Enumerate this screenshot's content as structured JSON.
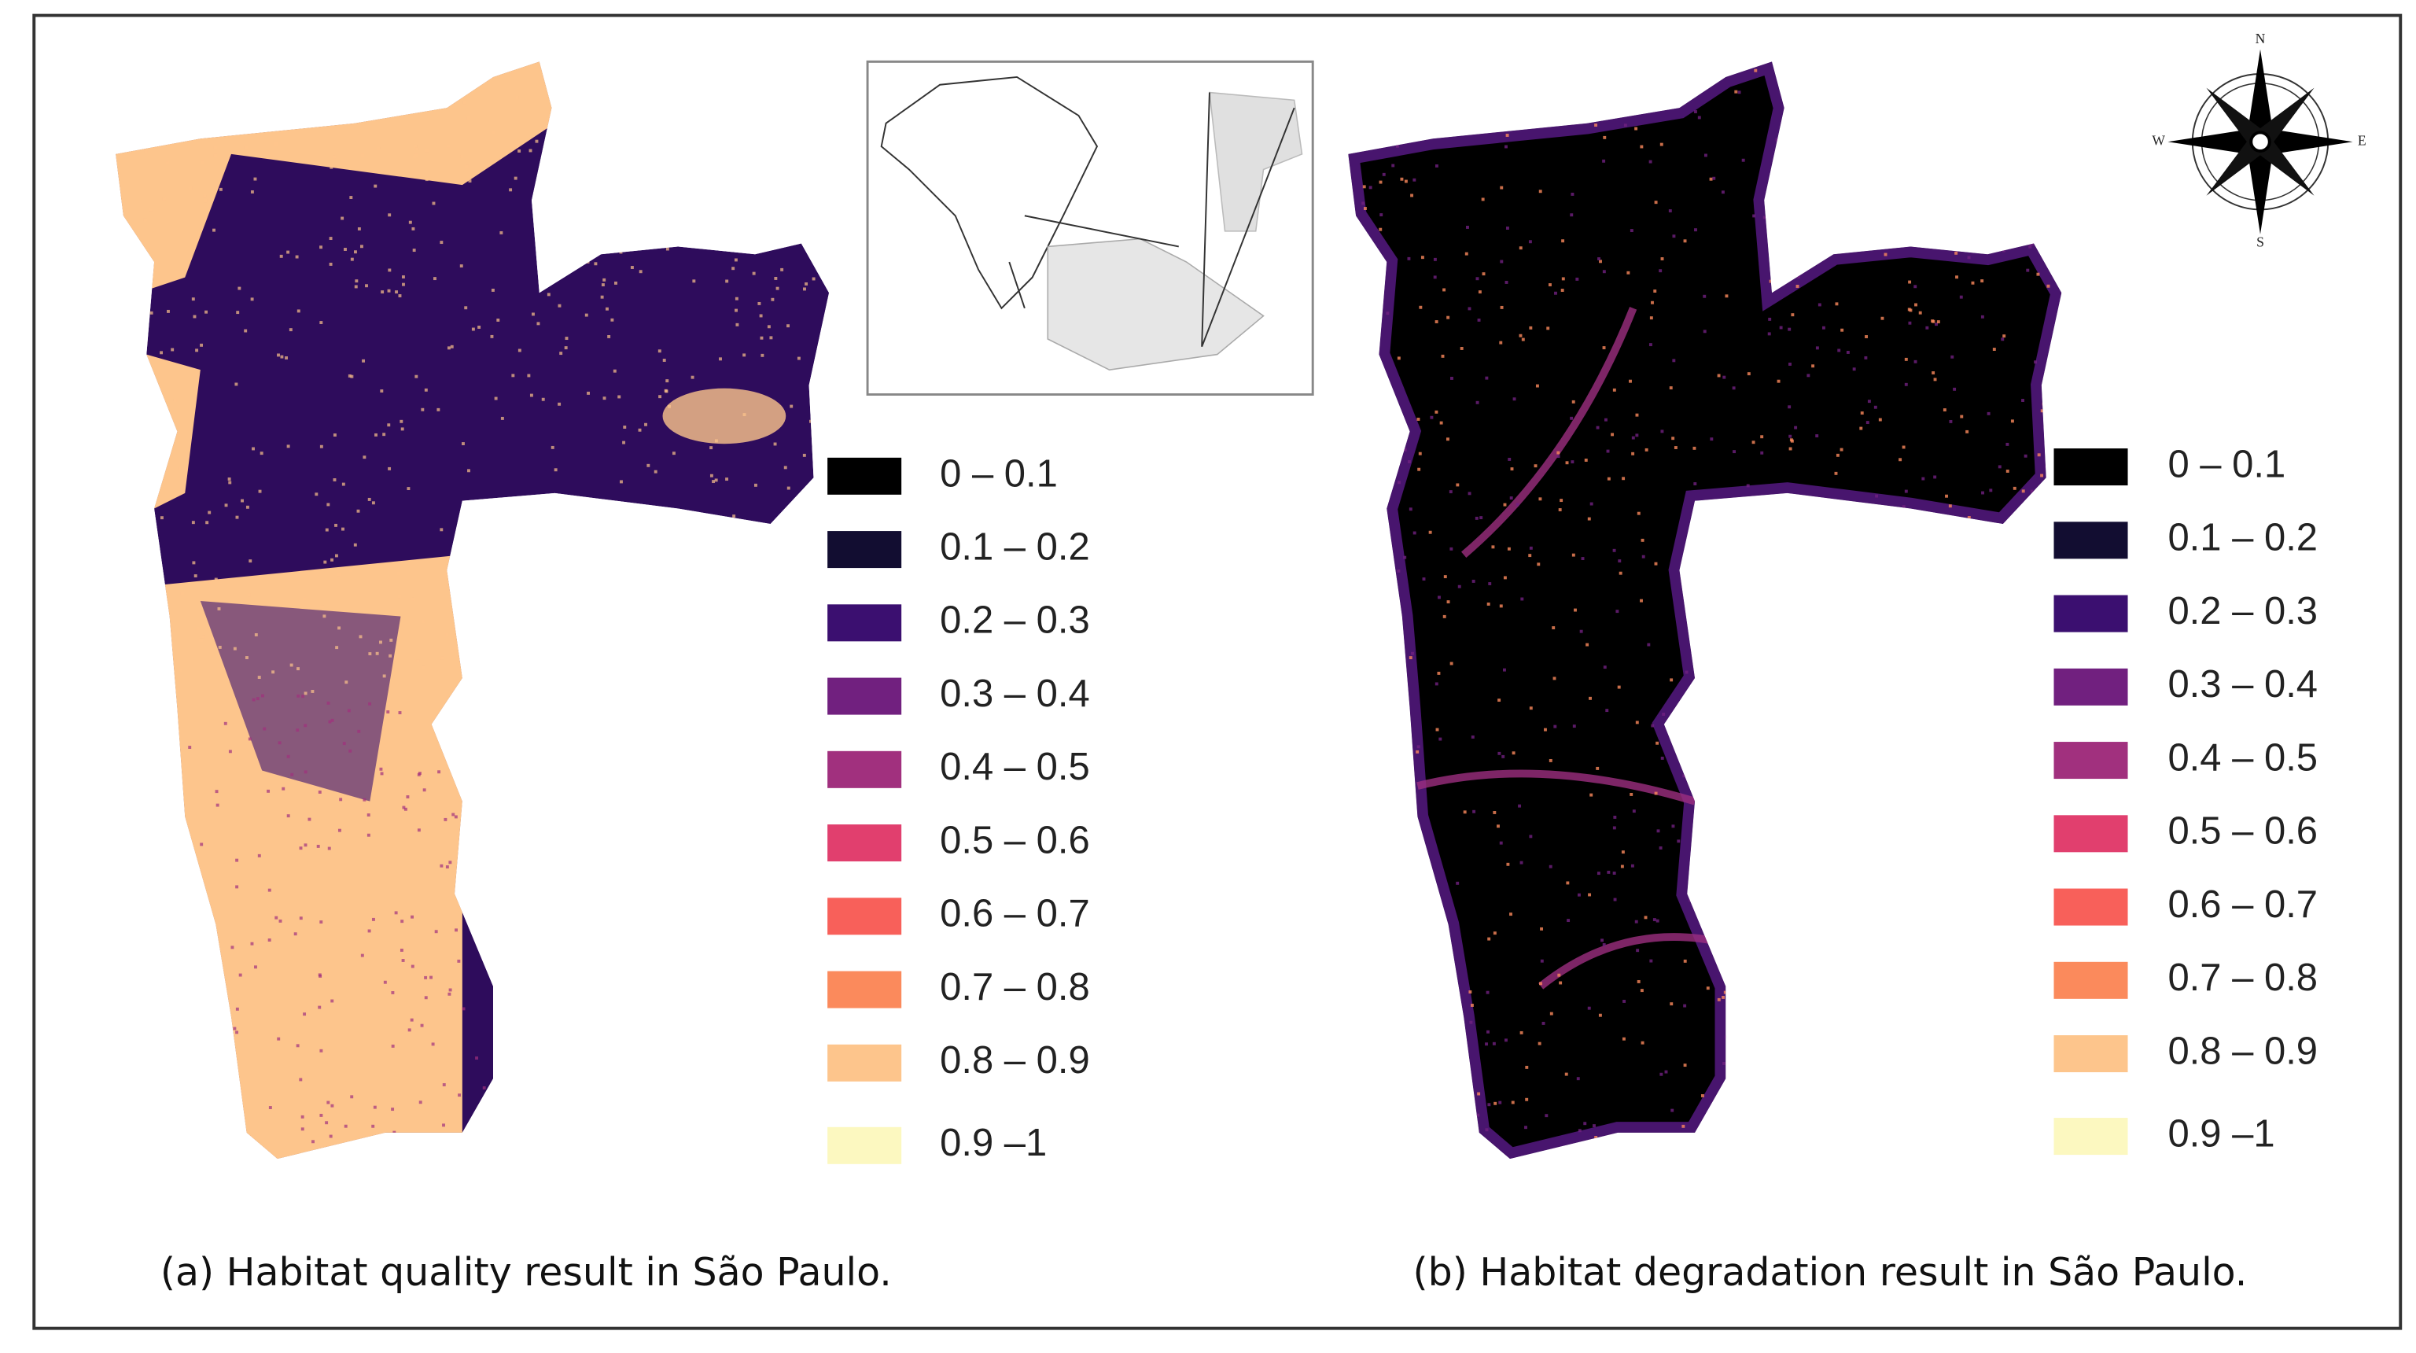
{
  "panels": [
    {
      "caption": "(a) Habitat quality result in São Paulo.",
      "legend": [
        {
          "label": "0 – 0.1",
          "color": "#000000"
        },
        {
          "label": "0.1 – 0.2",
          "color": "#120d31"
        },
        {
          "label": "0.2 – 0.3",
          "color": "#3b0f70"
        },
        {
          "label": "0.3 – 0.4",
          "color": "#71207f"
        },
        {
          "label": "0.4 – 0.5",
          "color": "#a1307e"
        },
        {
          "label": "0.5 – 0.6",
          "color": "#e13f6e"
        },
        {
          "label": "0.6 – 0.7",
          "color": "#f8605a"
        },
        {
          "label": "0.7 – 0.8",
          "color": "#fb8a5c"
        },
        {
          "label": "0.8 – 0.9",
          "color": "#fdc58c"
        },
        {
          "label": "0.9 –1",
          "color": "#fcf8c0"
        }
      ]
    },
    {
      "caption": "(b) Habitat degradation result in São Paulo.",
      "legend": [
        {
          "label": "0 – 0.1",
          "color": "#000000"
        },
        {
          "label": "0.1 – 0.2",
          "color": "#120d31"
        },
        {
          "label": "0.2 – 0.3",
          "color": "#3b0f70"
        },
        {
          "label": "0.3 – 0.4",
          "color": "#71207f"
        },
        {
          "label": "0.4 – 0.5",
          "color": "#a1307e"
        },
        {
          "label": "0.5 – 0.6",
          "color": "#e13f6e"
        },
        {
          "label": "0.6 – 0.7",
          "color": "#f8605a"
        },
        {
          "label": "0.7 – 0.8",
          "color": "#fb8a5c"
        },
        {
          "label": "0.8 – 0.9",
          "color": "#fdc58c"
        },
        {
          "label": "0.9 –1",
          "color": "#fcf8c0"
        }
      ]
    }
  ],
  "compass": {
    "n": "N",
    "e": "E",
    "s": "S",
    "w": "W"
  }
}
